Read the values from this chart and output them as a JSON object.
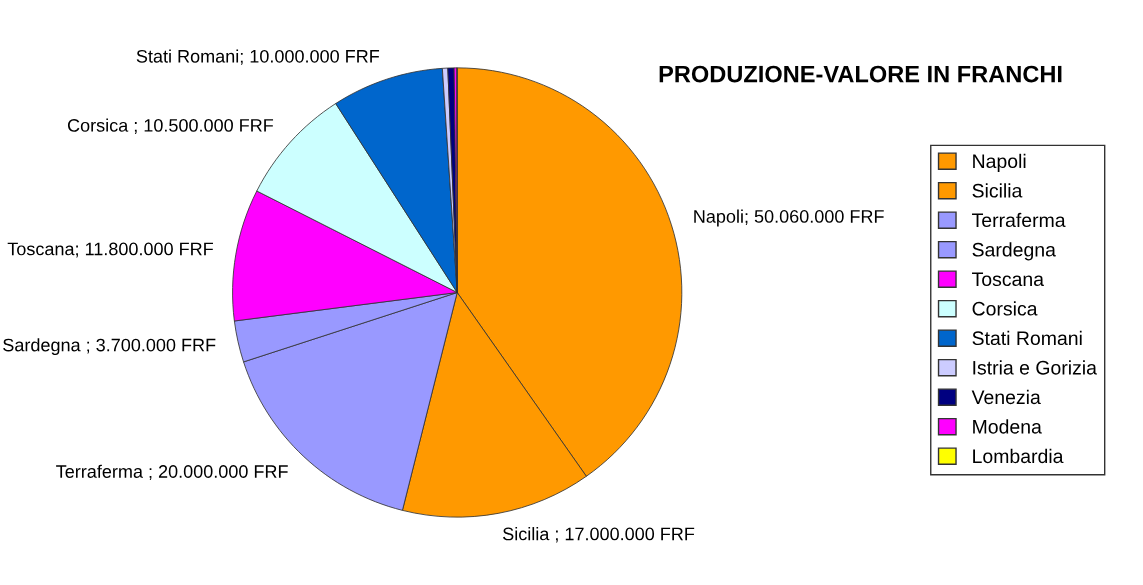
{
  "chart_data": {
    "type": "pie",
    "title": "PRODUZIONE-VALORE IN FRANCHI",
    "categories": [
      "Napoli",
      "Sicilia",
      "Terraferma",
      "Sardegna",
      "Toscana",
      "Corsica",
      "Stati Romani",
      "Istria e Gorizia",
      "Venezia",
      "Modena",
      "Lombardia"
    ],
    "values": [
      50060000,
      17000000,
      20000000,
      3700000,
      11800000,
      10500000,
      10000000,
      480000,
      560000,
      250000,
      20000
    ],
    "colors": [
      "#ff9900",
      "#ff9900",
      "#9999ff",
      "#9999ff",
      "#ff00ff",
      "#ccffff",
      "#0066cc",
      "#ccccff",
      "#000080",
      "#ff00ff",
      "#ffff00"
    ],
    "value_labels": [
      "Napoli; 50.060.000 FRF",
      "Sicilia ; 17.000.000 FRF",
      "Terraferma ; 20.000.000 FRF",
      "Sardegna ; 3.700.000 FRF",
      "Toscana; 11.800.000 FRF",
      "Corsica ; 10.500.000 FRF",
      "Stati Romani; 10.000.000 FRF",
      null,
      null,
      null,
      null
    ],
    "legend": "right"
  }
}
